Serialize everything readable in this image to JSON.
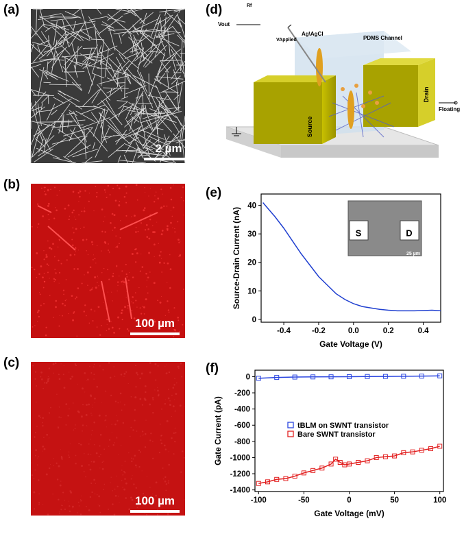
{
  "panels": {
    "a": {
      "label": "(a)",
      "scale_bar": "2 µm"
    },
    "b": {
      "label": "(b)",
      "scale_bar": "100 µm"
    },
    "c": {
      "label": "(c)",
      "scale_bar": "100 µm"
    },
    "d": {
      "label": "(d)",
      "texts": [
        "Rf",
        "Vout",
        "VApplied",
        "Ag\\AgCl",
        "PDMS Channel",
        "Source",
        "Drain",
        "Floating"
      ]
    },
    "e": {
      "label": "(e)",
      "inset": [
        "S",
        "D",
        "25 µm"
      ]
    },
    "f": {
      "label": "(f)"
    }
  },
  "chart_data": [
    {
      "type": "line",
      "x_label": "Gate Voltage (V)",
      "y_label": "Source-Drain Current (nA)",
      "xlim": [
        -0.53,
        0.5
      ],
      "ylim": [
        -1,
        44
      ],
      "xticks": [
        -0.4,
        -0.2,
        {
          "value": 0,
          "label": "0.0"
        },
        0.2,
        0.4
      ],
      "yticks": [
        0,
        10,
        20,
        30,
        40
      ],
      "x": [
        -0.52,
        -0.45,
        -0.4,
        -0.35,
        -0.3,
        -0.25,
        -0.2,
        -0.15,
        -0.1,
        -0.05,
        0,
        0.05,
        0.1,
        0.15,
        0.2,
        0.25,
        0.3,
        0.35,
        0.4,
        0.45,
        0.5
      ],
      "series": [
        {
          "name": "",
          "color": "#1f3fd0",
          "values": [
            41,
            36,
            32,
            27.5,
            23,
            19,
            15,
            12,
            9,
            7,
            5.5,
            4.5,
            4,
            3.5,
            3.2,
            3,
            3,
            3,
            3.1,
            3.2,
            3
          ]
        }
      ]
    },
    {
      "type": "line",
      "x_label": "Gate Voltage (mV)",
      "y_label": "Gate Current (pA)",
      "xlim": [
        -104,
        104
      ],
      "ylim": [
        -1420,
        80
      ],
      "xticks": [
        -100,
        -50,
        0,
        50,
        100
      ],
      "yticks": [
        0,
        -200,
        -400,
        -600,
        -800,
        -1000,
        -1200,
        -1400
      ],
      "legend": "middle-left",
      "series": [
        {
          "name": "tBLM on SWNT transistor",
          "color": "#2a45e0",
          "x": [
            -100,
            -80,
            -60,
            -40,
            -20,
            0,
            20,
            40,
            60,
            80,
            100
          ],
          "values": [
            -20,
            -10,
            -5,
            -3,
            -2,
            0,
            2,
            3,
            5,
            7,
            10
          ]
        },
        {
          "name": "Bare SWNT transistor",
          "color": "#e21f1f",
          "x": [
            -100,
            -90,
            -80,
            -70,
            -60,
            -50,
            -40,
            -30,
            -20,
            -15,
            -10,
            -5,
            0,
            10,
            20,
            30,
            40,
            50,
            60,
            70,
            80,
            90,
            100
          ],
          "values": [
            -1320,
            -1300,
            -1270,
            -1260,
            -1230,
            -1190,
            -1160,
            -1130,
            -1080,
            -1020,
            -1060,
            -1090,
            -1080,
            -1060,
            -1040,
            -1000,
            -990,
            -980,
            -940,
            -930,
            -910,
            -890,
            -860
          ]
        }
      ]
    }
  ]
}
